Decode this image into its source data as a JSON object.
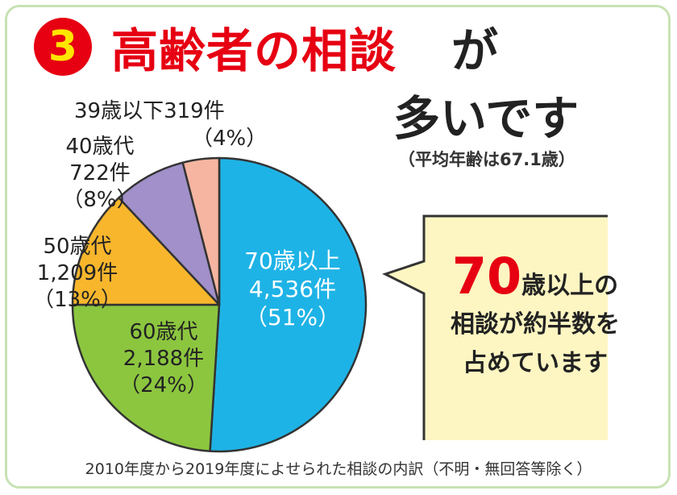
{
  "header": {
    "badge_number": "3",
    "title_red": "高齢者の相談",
    "title_black_1": "が",
    "title_black_2": "多いです",
    "average_age_note": "（平均年齢は67.1歳）"
  },
  "chart_data": {
    "type": "pie",
    "slices": [
      {
        "category": "70歳以上",
        "count": "4,536件",
        "percent": "（51%）",
        "value": 51,
        "color": "#1eb3e6"
      },
      {
        "category": "60歳代",
        "count": "2,188件",
        "percent": "（24%）",
        "value": 24,
        "color": "#8cc63f"
      },
      {
        "category": "50歳代",
        "count": "1,209件",
        "percent": "（13%）",
        "value": 13,
        "color": "#f8b62d"
      },
      {
        "category": "40歳代",
        "count": "722件",
        "percent": "（8%）",
        "value": 8,
        "color": "#a190c9"
      },
      {
        "category": "39歳以下",
        "count": "319件",
        "percent": "（4%）",
        "value": 4,
        "color": "#f6b5a0"
      }
    ]
  },
  "callout": {
    "number": "70",
    "line1_rest": "歳以上の",
    "line2": "相談が約半数を",
    "line3": "占めています",
    "bg_color": "#fdf6c2",
    "border_color": "#333333"
  },
  "footnote": "2010年度から2019年度によせられた相談の内訳（不明・無回答等除く）"
}
